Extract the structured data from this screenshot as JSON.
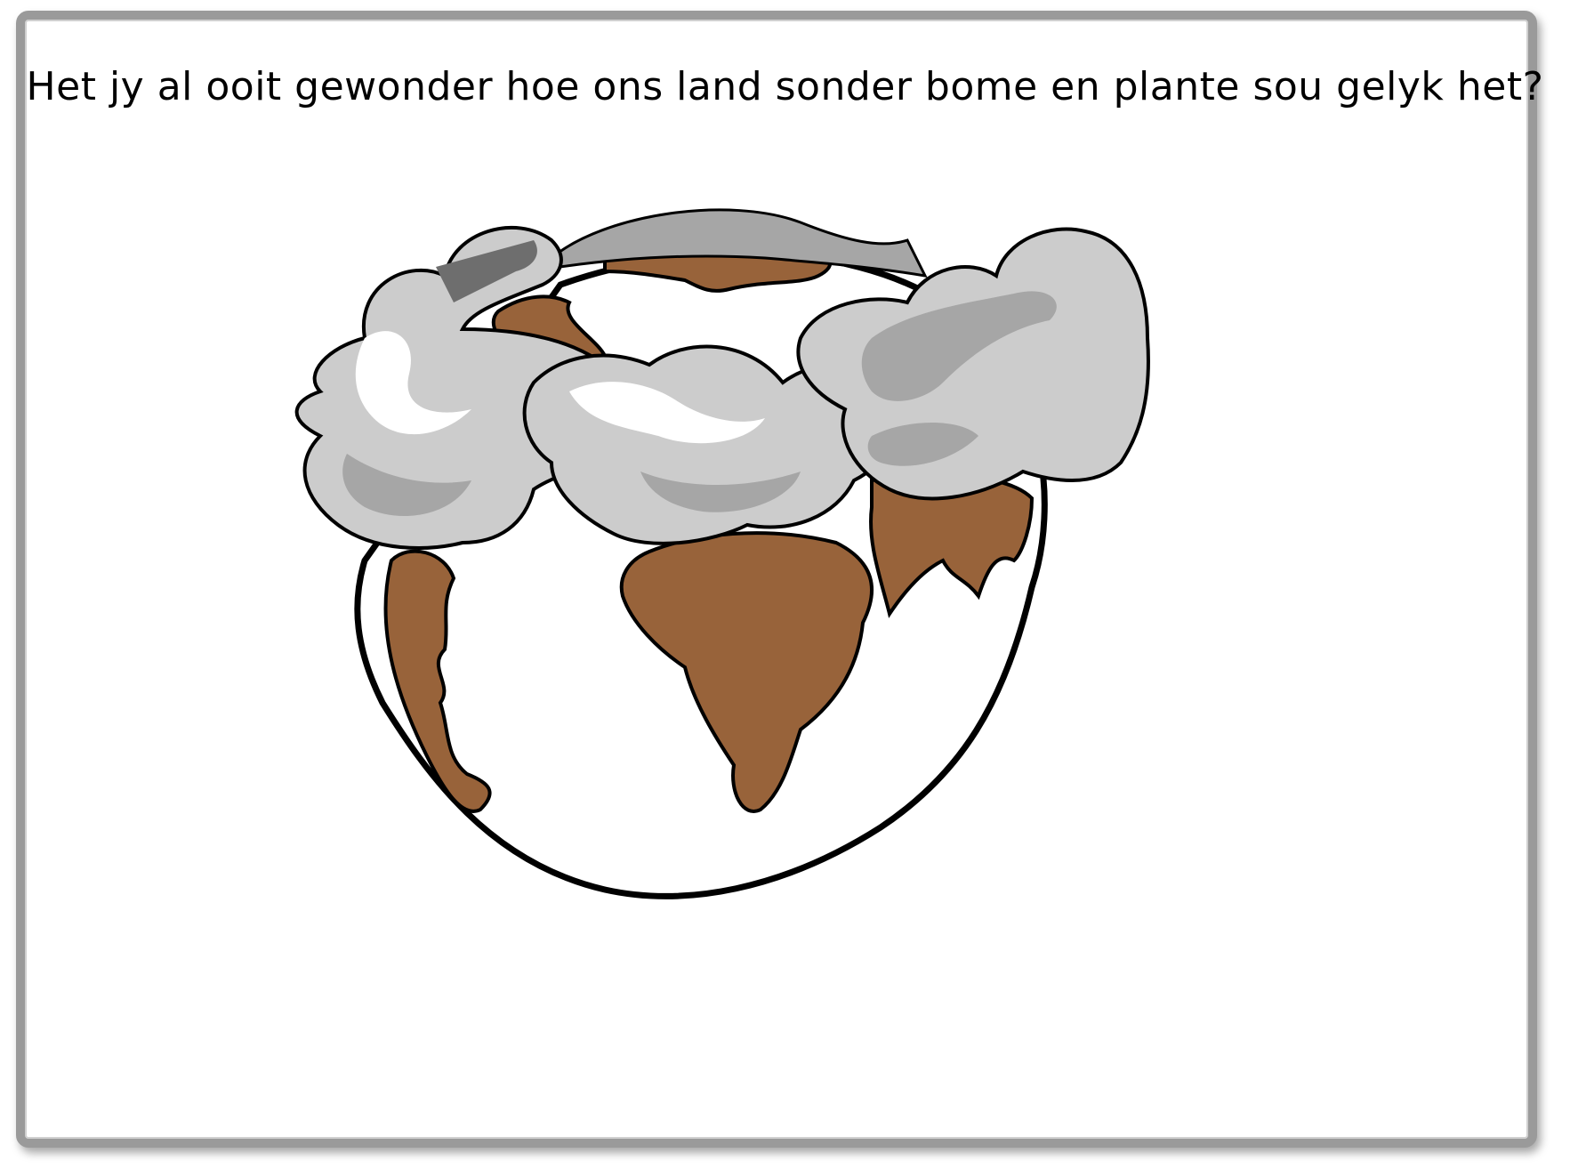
{
  "slide": {
    "caption": "Het jy al ooit gewonder hoe ons land sonder bome en plante sou gelyk het?"
  },
  "illustration": {
    "subject": "globe-with-smoke-clouds",
    "colors": {
      "land": "#98633a",
      "ocean": "#ffffff",
      "outline": "#000000",
      "smoke_light": "#cccccc",
      "smoke_mid": "#a6a6a6",
      "smoke_dark": "#6e6e6e",
      "frame": "#9a9a9a"
    }
  }
}
